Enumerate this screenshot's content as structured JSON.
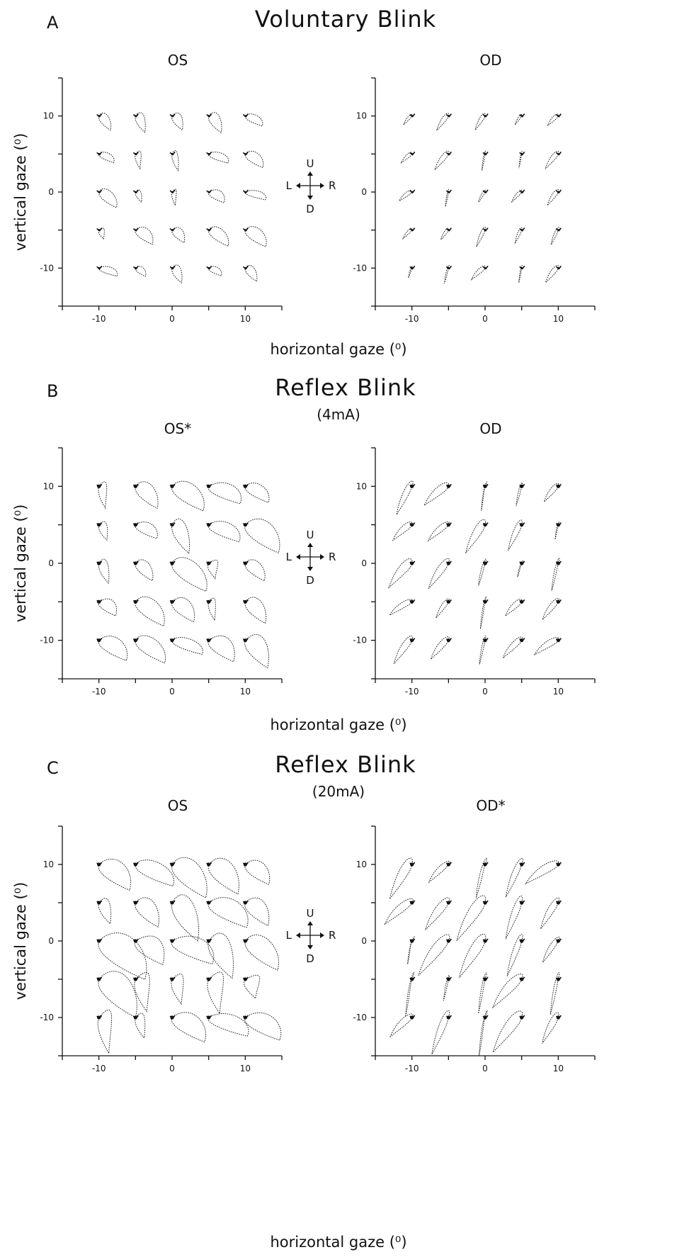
{
  "figure": {
    "panels": [
      {
        "letter": "A",
        "title": "Voluntary Blink",
        "subtitle": "",
        "left_plot_title": "OS",
        "right_plot_title": "OD",
        "ylabel": "vertical gaze (⁰)",
        "xlabel": "horizontal gaze (⁰)",
        "compass": {
          "up": "U",
          "down": "D",
          "left": "L",
          "right": "R"
        },
        "size": "small"
      },
      {
        "letter": "B",
        "title": "Reflex Blink",
        "subtitle": "(4mA)",
        "left_plot_title": "OS*",
        "right_plot_title": "OD",
        "ylabel": "vertical gaze (⁰)",
        "xlabel": "horizontal gaze (⁰)",
        "compass": {
          "up": "U",
          "down": "D",
          "left": "L",
          "right": "R"
        },
        "size": "medium"
      },
      {
        "letter": "C",
        "title": "Reflex Blink",
        "subtitle": "(20mA)",
        "left_plot_title": "OS",
        "right_plot_title": "OD*",
        "ylabel": "vertical gaze (⁰)",
        "xlabel": "horizontal gaze (⁰)",
        "compass": {
          "up": "U",
          "down": "D",
          "left": "L",
          "right": "R"
        },
        "size": "large"
      }
    ]
  },
  "chart_data": [
    {
      "type": "scatter",
      "panel": "A",
      "title": "OS",
      "xlabel": "",
      "ylabel": "vertical gaze (⁰)",
      "xlim": [
        -15,
        15
      ],
      "ylim": [
        -15,
        15
      ],
      "xticks": [
        -10,
        0,
        10
      ],
      "yticks": [
        -10,
        0,
        10
      ],
      "fixation_x": [
        -10,
        -5,
        0,
        5,
        10
      ],
      "fixation_y": [
        10,
        5,
        0,
        -5,
        -10
      ],
      "trace_shape": "small",
      "eye": "left"
    },
    {
      "type": "scatter",
      "panel": "A",
      "title": "OD",
      "xlabel": "",
      "ylabel": "",
      "xlim": [
        -15,
        15
      ],
      "ylim": [
        -15,
        15
      ],
      "xticks": [
        -10,
        0,
        10
      ],
      "yticks": [
        -10,
        0,
        10
      ],
      "fixation_x": [
        -10,
        -5,
        0,
        5,
        10
      ],
      "fixation_y": [
        10,
        5,
        0,
        -5,
        -10
      ],
      "trace_shape": "small",
      "eye": "right"
    },
    {
      "type": "scatter",
      "panel": "B",
      "title": "OS*",
      "xlabel": "",
      "ylabel": "vertical gaze (⁰)",
      "xlim": [
        -15,
        15
      ],
      "ylim": [
        -15,
        15
      ],
      "xticks": [
        -10,
        0,
        10
      ],
      "yticks": [
        -10,
        0,
        10
      ],
      "fixation_x": [
        -10,
        -5,
        0,
        5,
        10
      ],
      "fixation_y": [
        10,
        5,
        0,
        -5,
        -10
      ],
      "trace_shape": "medium",
      "eye": "left"
    },
    {
      "type": "scatter",
      "panel": "B",
      "title": "OD",
      "xlabel": "",
      "ylabel": "",
      "xlim": [
        -15,
        15
      ],
      "ylim": [
        -15,
        15
      ],
      "xticks": [
        -10,
        0,
        10
      ],
      "yticks": [
        -10,
        0,
        10
      ],
      "fixation_x": [
        -10,
        -5,
        0,
        5,
        10
      ],
      "fixation_y": [
        10,
        5,
        0,
        -5,
        -10
      ],
      "trace_shape": "medium",
      "eye": "right"
    },
    {
      "type": "scatter",
      "panel": "C",
      "title": "OS",
      "xlabel": "",
      "ylabel": "vertical gaze (⁰)",
      "xlim": [
        -15,
        15
      ],
      "ylim": [
        -15,
        15
      ],
      "xticks": [
        -10,
        0,
        10
      ],
      "yticks": [
        -10,
        0,
        10
      ],
      "fixation_x": [
        -10,
        -5,
        0,
        5,
        10
      ],
      "fixation_y": [
        10,
        5,
        0,
        -5,
        -10
      ],
      "trace_shape": "large",
      "eye": "left"
    },
    {
      "type": "scatter",
      "panel": "C",
      "title": "OD*",
      "xlabel": "",
      "ylabel": "",
      "xlim": [
        -15,
        15
      ],
      "ylim": [
        -15,
        15
      ],
      "xticks": [
        -10,
        0,
        10
      ],
      "yticks": [
        -10,
        0,
        10
      ],
      "fixation_x": [
        -10,
        -5,
        0,
        5,
        10
      ],
      "fixation_y": [
        10,
        5,
        0,
        -5,
        -10
      ],
      "trace_shape": "large",
      "eye": "right"
    }
  ]
}
